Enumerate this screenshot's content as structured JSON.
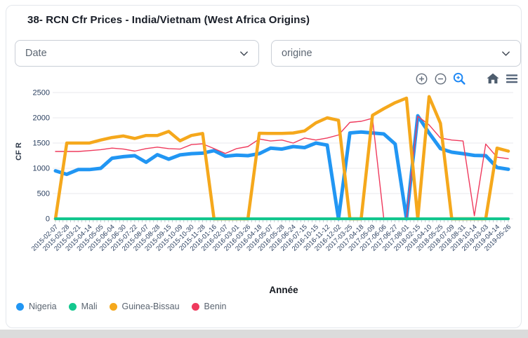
{
  "header": {
    "title": "38- RCN Cfr Prices - India/Vietnam (West Africa Origins)"
  },
  "filters": {
    "date_select": {
      "value": "Date"
    },
    "origin_select": {
      "value": "origine"
    }
  },
  "toolbar": {
    "icons": [
      "zoom-in-icon",
      "zoom-out-icon",
      "box-zoom-icon",
      "home-icon",
      "menu-icon"
    ],
    "active_tool": "box-zoom"
  },
  "colors": {
    "accent_blue": "#1e88f5",
    "icon_gray": "#66707d",
    "icon_dark": "#4e5d6e",
    "card_border": "#e4e7ec",
    "footer_strip": "#dbdbdb",
    "gridline": "#e8eaee",
    "tick_label": "#2a3f5f",
    "minor_tick": "#b9c2ca"
  },
  "chart_data": {
    "type": "line",
    "title": "",
    "xlabel": "Année",
    "ylabel": "CF R",
    "ylim": [
      0,
      2500
    ],
    "yticks": [
      0,
      500,
      1000,
      1500,
      2000,
      2500
    ],
    "grid": true,
    "legend_position": "bottom-left",
    "x_tick_angle": -45,
    "categories": [
      "2015-02-07",
      "2015-02-28",
      "2015-03-21",
      "2015-04-14",
      "2015-05-05",
      "2015-06-04",
      "2015-06-30",
      "2015-07-22",
      "2015-08-07",
      "2015-08-28",
      "2015-09-15",
      "2015-10-09",
      "2015-10-30",
      "2015-11-28",
      "2016-01-16",
      "2016-02-07",
      "2016-03-01",
      "2016-03-26",
      "2016-04-18",
      "2016-05-07",
      "2016-05-28",
      "2016-06-24",
      "2016-07-15",
      "2016-10-15",
      "2016-11-12",
      "2016-12-02",
      "2017-03-25",
      "2017-04-18",
      "2017-05-09",
      "2017-06-06",
      "2017-06-27",
      "2017-08-01",
      "2018-02-15",
      "2018-04-10",
      "2018-05-25",
      "2018-07-09",
      "2018-08-31",
      "2018-10-14",
      "2019-03-03",
      "2019-04-14",
      "2019-05-26"
    ],
    "series": [
      {
        "name": "Nigeria",
        "color": "#2196f3",
        "width": 5,
        "z": 1,
        "values": [
          950,
          880,
          975,
          975,
          1000,
          1200,
          1230,
          1250,
          1120,
          1270,
          1180,
          1265,
          1290,
          1300,
          1350,
          1240,
          1260,
          1250,
          1290,
          1400,
          1380,
          1430,
          1410,
          1500,
          1460,
          0,
          1700,
          1720,
          1700,
          1680,
          1480,
          0,
          2040,
          1700,
          1390,
          1320,
          1290,
          1255,
          1250,
          1015,
          980
        ]
      },
      {
        "name": "Mali",
        "color": "#13c78e",
        "width": 4,
        "z": 4,
        "values": [
          0,
          0,
          0,
          0,
          0,
          0,
          0,
          0,
          0,
          0,
          0,
          0,
          0,
          0,
          0,
          0,
          0,
          0,
          0,
          0,
          0,
          0,
          0,
          0,
          0,
          0,
          0,
          0,
          0,
          0,
          0,
          0,
          0,
          0,
          0,
          0,
          0,
          0,
          0,
          0,
          0
        ]
      },
      {
        "name": "Guinea-Bissau",
        "color": "#f5a81c",
        "width": 4.5,
        "z": 3,
        "values": [
          0,
          1500,
          1500,
          1500,
          1560,
          1610,
          1640,
          1590,
          1650,
          1650,
          1730,
          1545,
          1650,
          1690,
          0,
          0,
          0,
          0,
          1695,
          1690,
          1690,
          1700,
          1740,
          1900,
          2000,
          1950,
          0,
          0,
          2050,
          2180,
          2300,
          2390,
          0,
          2420,
          1890,
          0,
          0,
          0,
          0,
          1400,
          1340
        ]
      },
      {
        "name": "Benin",
        "color": "#ef3a5d",
        "width": 1.4,
        "z": 2,
        "values": [
          1333,
          1333,
          1333,
          1350,
          1370,
          1400,
          1380,
          1340,
          1390,
          1420,
          1390,
          1380,
          1470,
          1485,
          1390,
          1295,
          1390,
          1430,
          1580,
          1540,
          1560,
          1500,
          1600,
          1560,
          1600,
          1660,
          1910,
          1930,
          1990,
          0,
          0,
          0,
          2030,
          1860,
          1600,
          1560,
          1540,
          60,
          1480,
          1220,
          1190
        ]
      }
    ]
  }
}
